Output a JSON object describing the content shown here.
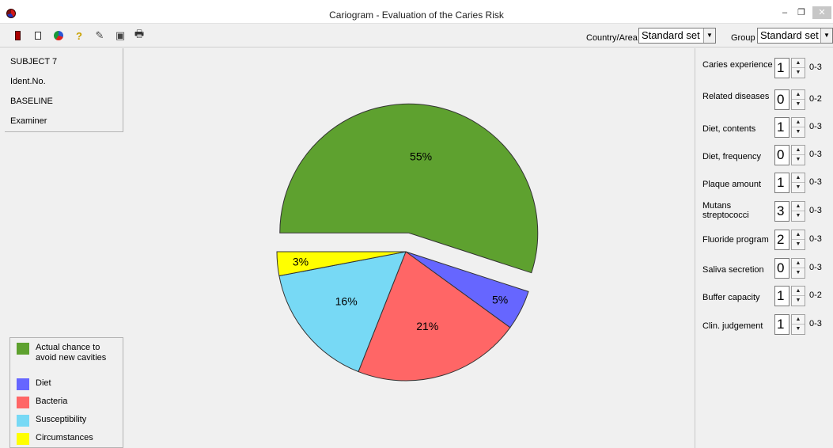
{
  "window": {
    "title": "Cariogram - Evaluation of the Caries Risk",
    "minimize_glyph": "–",
    "restore_glyph": "❐",
    "close_glyph": "✕"
  },
  "toolbar": {
    "icons": [
      "exit-icon",
      "new-document-icon",
      "pie-chart-icon",
      "help-icon",
      "edit-icon",
      "save-icon",
      "print-icon"
    ],
    "help_glyph": "?",
    "edit_glyph": "✎",
    "save_glyph": "▣",
    "print_glyph": "🖶",
    "country_label": "Country/Area",
    "country_value": "Standard set",
    "group_label": "Group",
    "group_value": "Standard set",
    "dropdown_glyph": "▼"
  },
  "subject": {
    "name": "SUBJECT 7",
    "id_label": "Ident.No.",
    "visit": "BASELINE",
    "examiner_label": "Examiner"
  },
  "legend": [
    {
      "label": "Actual chance to avoid new cavities",
      "color": "#5ea12f"
    },
    {
      "label": "Diet",
      "color": "#6666ff"
    },
    {
      "label": "Bacteria",
      "color": "#ff6666"
    },
    {
      "label": "Susceptibility",
      "color": "#77d9f5"
    },
    {
      "label": "Circumstances",
      "color": "#ffff00"
    }
  ],
  "chart_data": {
    "type": "pie",
    "slices": [
      {
        "name": "Actual chance to avoid new cavities",
        "value": 55,
        "label": "55%",
        "color": "#5ea12f",
        "exploded": true
      },
      {
        "name": "Diet",
        "value": 5,
        "label": "5%",
        "color": "#6666ff"
      },
      {
        "name": "Bacteria",
        "value": 21,
        "label": "21%",
        "color": "#ff6666"
      },
      {
        "name": "Susceptibility",
        "value": 16,
        "label": "16%",
        "color": "#77d9f5"
      },
      {
        "name": "Circumstances",
        "value": 3,
        "label": "3%",
        "color": "#ffff00"
      }
    ]
  },
  "parameters": [
    {
      "label": "Caries experience",
      "value": "1",
      "range": "0-3"
    },
    {
      "label": "Related diseases",
      "value": "0",
      "range": "0-2"
    },
    {
      "label": "Diet, contents",
      "value": "1",
      "range": "0-3"
    },
    {
      "label": "Diet, frequency",
      "value": "0",
      "range": "0-3"
    },
    {
      "label": "Plaque amount",
      "value": "1",
      "range": "0-3"
    },
    {
      "label": "Mutans streptococci",
      "value": "3",
      "range": "0-3"
    },
    {
      "label": "Fluoride program",
      "value": "2",
      "range": "0-3"
    },
    {
      "label": "Saliva secretion",
      "value": "0",
      "range": "0-3"
    },
    {
      "label": "Buffer capacity",
      "value": "1",
      "range": "0-2"
    },
    {
      "label": "Clin. judgement",
      "value": "1",
      "range": "0-3"
    }
  ],
  "spin_up_glyph": "▲",
  "spin_down_glyph": "▼"
}
